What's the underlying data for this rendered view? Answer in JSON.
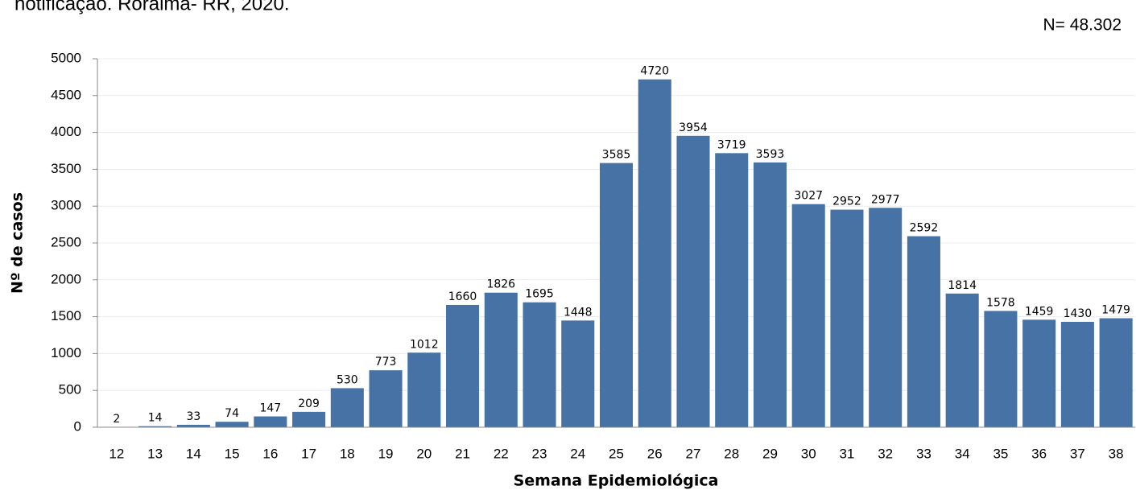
{
  "chart_data": {
    "type": "bar",
    "title": "notificação. Roraima- RR, 2020.",
    "annotation": "N= 48.302",
    "x_label": "Semana Epidemiológica",
    "y_label": "Nº de casos",
    "categories": [
      "12",
      "13",
      "14",
      "15",
      "16",
      "17",
      "18",
      "19",
      "20",
      "21",
      "22",
      "23",
      "24",
      "25",
      "26",
      "27",
      "28",
      "29",
      "30",
      "31",
      "32",
      "33",
      "34",
      "35",
      "36",
      "37",
      "38"
    ],
    "values": [
      2,
      14,
      33,
      74,
      147,
      209,
      530,
      773,
      1012,
      1660,
      1826,
      1695,
      1448,
      3585,
      4720,
      3954,
      3719,
      3593,
      3027,
      2952,
      2977,
      2592,
      1814,
      1578,
      1459,
      1430,
      1479
    ],
    "color": "#4672a6",
    "ylim": [
      0,
      5000
    ],
    "yticks": [
      0,
      500,
      1000,
      1500,
      2000,
      2500,
      3000,
      3500,
      4000,
      4500,
      5000
    ],
    "grid": true
  }
}
